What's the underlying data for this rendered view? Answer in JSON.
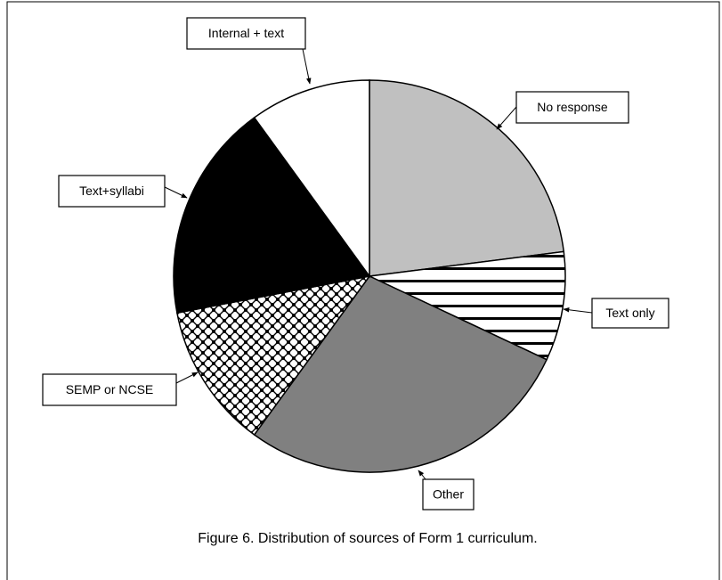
{
  "chart_data": {
    "type": "pie",
    "title": "Figure 6. Distribution of sources of Form 1 curriculum.",
    "categories": [
      "No response",
      "Text only",
      "Other",
      "SEMP or NCSE",
      "Text+syllabi",
      "Internal + text"
    ],
    "values": [
      23,
      9,
      28,
      12,
      18,
      10
    ],
    "colors": [
      "#c0c0c0",
      "#ffffff",
      "#808080",
      "#ffffff",
      "#000000",
      "#ffffff"
    ],
    "patterns": [
      null,
      "stripes",
      null,
      "checker",
      null,
      null
    ]
  }
}
